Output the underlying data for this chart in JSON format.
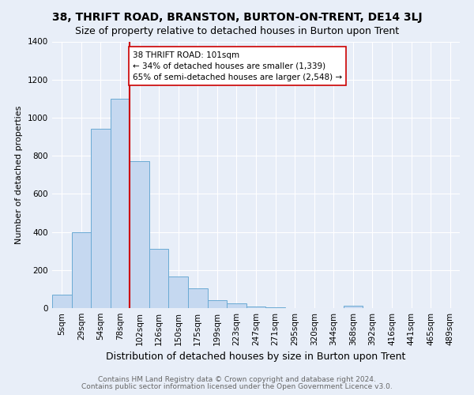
{
  "title": "38, THRIFT ROAD, BRANSTON, BURTON-ON-TRENT, DE14 3LJ",
  "subtitle": "Size of property relative to detached houses in Burton upon Trent",
  "xlabel": "Distribution of detached houses by size in Burton upon Trent",
  "ylabel": "Number of detached properties",
  "footer1": "Contains HM Land Registry data © Crown copyright and database right 2024.",
  "footer2": "Contains public sector information licensed under the Open Government Licence v3.0.",
  "categories": [
    "5sqm",
    "29sqm",
    "54sqm",
    "78sqm",
    "102sqm",
    "126sqm",
    "150sqm",
    "175sqm",
    "199sqm",
    "223sqm",
    "247sqm",
    "271sqm",
    "295sqm",
    "320sqm",
    "344sqm",
    "368sqm",
    "392sqm",
    "416sqm",
    "441sqm",
    "465sqm",
    "489sqm"
  ],
  "values": [
    70,
    400,
    940,
    1100,
    770,
    310,
    165,
    105,
    40,
    25,
    10,
    3,
    2,
    1,
    0,
    12,
    0,
    0,
    0,
    0,
    0
  ],
  "bar_color": "#c5d8f0",
  "bar_edge_color": "#6aaad4",
  "property_line_bar_index": 4,
  "property_line_color": "#cc0000",
  "annotation_text": "38 THRIFT ROAD: 101sqm\n← 34% of detached houses are smaller (1,339)\n65% of semi-detached houses are larger (2,548) →",
  "annotation_box_facecolor": "#ffffff",
  "annotation_box_edgecolor": "#cc0000",
  "ylim": [
    0,
    1400
  ],
  "yticks": [
    0,
    200,
    400,
    600,
    800,
    1000,
    1200,
    1400
  ],
  "background_color": "#e8eef8",
  "grid_color": "#ffffff",
  "title_fontsize": 10,
  "subtitle_fontsize": 9,
  "ylabel_fontsize": 8,
  "xlabel_fontsize": 9,
  "tick_fontsize": 7.5,
  "footer_fontsize": 6.5,
  "footer_color": "#666666"
}
